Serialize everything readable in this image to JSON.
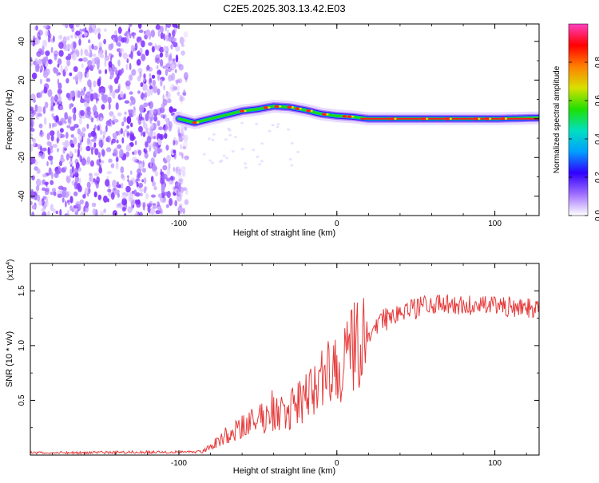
{
  "title": "C2E5.2025.303.13.42.E03",
  "chart_data": [
    {
      "type": "heatmap",
      "name": "spectrogram",
      "xlabel": "Height of straight line (km)",
      "ylabel": "Frequency (Hz)",
      "xlim": [
        -194,
        128
      ],
      "ylim": [
        -50,
        49
      ],
      "xticks": [
        -100,
        0,
        100
      ],
      "xtick_labels": [
        "-100",
        "0",
        "100"
      ],
      "yticks": [
        -40,
        -20,
        0,
        20,
        40
      ],
      "ytick_labels": [
        "-40",
        "-20",
        "0",
        "20",
        "40"
      ],
      "noise_region_x": [
        -194,
        -95
      ],
      "ridge": {
        "x": [
          -100,
          -90,
          -80,
          -70,
          -60,
          -50,
          -40,
          -30,
          -20,
          -10,
          0,
          10,
          20,
          40,
          60,
          80,
          100,
          128
        ],
        "frequency": [
          0,
          -2,
          0,
          2,
          4,
          5,
          6.5,
          6,
          4.5,
          2.5,
          1.5,
          1,
          0,
          0,
          0,
          0,
          0,
          0.5
        ]
      },
      "colorbar": {
        "label": "Normalized spectral amplitude",
        "range": [
          0,
          1
        ],
        "ticks": [
          0,
          0.2,
          0.4,
          0.6,
          0.8
        ],
        "tick_labels": [
          "0.0",
          "0.2",
          "0.4",
          "0.6",
          "0.8"
        ],
        "colors": [
          "#ffffff",
          "#a070ff",
          "#3000ff",
          "#00a0ff",
          "#00e0c0",
          "#20e000",
          "#d8e000",
          "#ff8000",
          "#ff0000",
          "#ff40c0"
        ]
      }
    },
    {
      "type": "line",
      "name": "snr",
      "xlabel": "Height of straight line (km)",
      "ylabel": "SNR (10 * v/v)",
      "y_multiplier": "(x10",
      "y_multiplier_exp": "4",
      "xlim": [
        -194,
        128
      ],
      "ylim": [
        0,
        1.75
      ],
      "xticks": [
        -100,
        0,
        100
      ],
      "xtick_labels": [
        "-100",
        "0",
        "100"
      ],
      "yticks": [
        0.5,
        1.0,
        1.5
      ],
      "ytick_labels": [
        "0.5",
        "1.0",
        "1.5"
      ],
      "color": "#e63a3a",
      "envelope": {
        "x": [
          -194,
          -85,
          -80,
          -70,
          -60,
          -50,
          -40,
          -30,
          -20,
          -10,
          0,
          10,
          20,
          30,
          40,
          50,
          60,
          80,
          100,
          128
        ],
        "snr": [
          0.02,
          0.03,
          0.08,
          0.18,
          0.25,
          0.32,
          0.38,
          0.42,
          0.5,
          0.7,
          0.8,
          0.95,
          1.1,
          1.25,
          1.3,
          1.35,
          1.38,
          1.36,
          1.36,
          1.34
        ]
      }
    }
  ]
}
